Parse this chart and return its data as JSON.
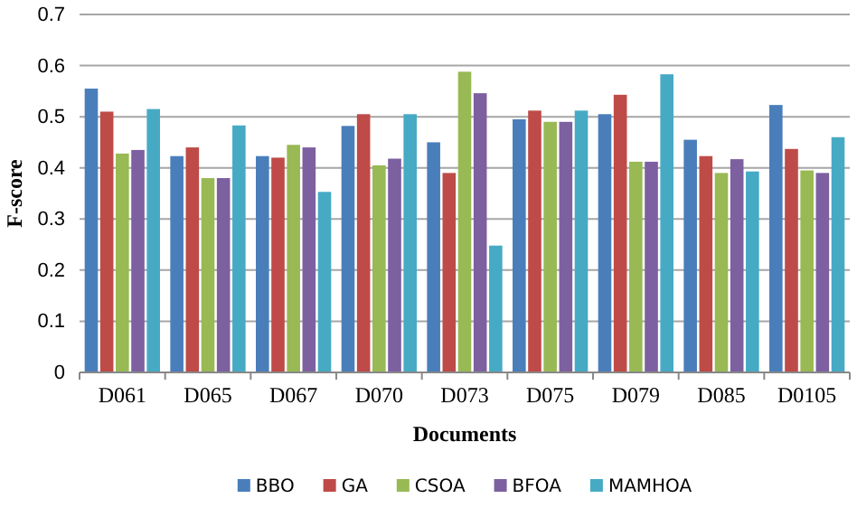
{
  "chart_data": {
    "type": "bar",
    "xlabel": "Documents",
    "ylabel": "F-score",
    "categories": [
      "D061",
      "D065",
      "D067",
      "D070",
      "D073",
      "D075",
      "D079",
      "D085",
      "D0105"
    ],
    "series": [
      {
        "name": "BBO",
        "color": "#4a7ebb",
        "values": [
          0.555,
          0.423,
          0.423,
          0.482,
          0.45,
          0.495,
          0.505,
          0.455,
          0.523
        ]
      },
      {
        "name": "GA",
        "color": "#be4b48",
        "values": [
          0.51,
          0.44,
          0.42,
          0.505,
          0.39,
          0.512,
          0.543,
          0.423,
          0.437
        ]
      },
      {
        "name": "CSOA",
        "color": "#98b954",
        "values": [
          0.428,
          0.38,
          0.445,
          0.405,
          0.588,
          0.49,
          0.412,
          0.39,
          0.395
        ]
      },
      {
        "name": "BFOA",
        "color": "#7d60a0",
        "values": [
          0.435,
          0.38,
          0.44,
          0.418,
          0.546,
          0.49,
          0.412,
          0.417,
          0.39
        ]
      },
      {
        "name": "MAMHOA",
        "color": "#46aac5",
        "values": [
          0.515,
          0.483,
          0.353,
          0.505,
          0.248,
          0.512,
          0.583,
          0.393,
          0.46
        ]
      }
    ],
    "ylim": [
      0,
      0.7
    ],
    "yticks": [
      0,
      0.1,
      0.2,
      0.3,
      0.4,
      0.5,
      0.6,
      0.7
    ],
    "grid": "y",
    "legend": "bottom"
  }
}
